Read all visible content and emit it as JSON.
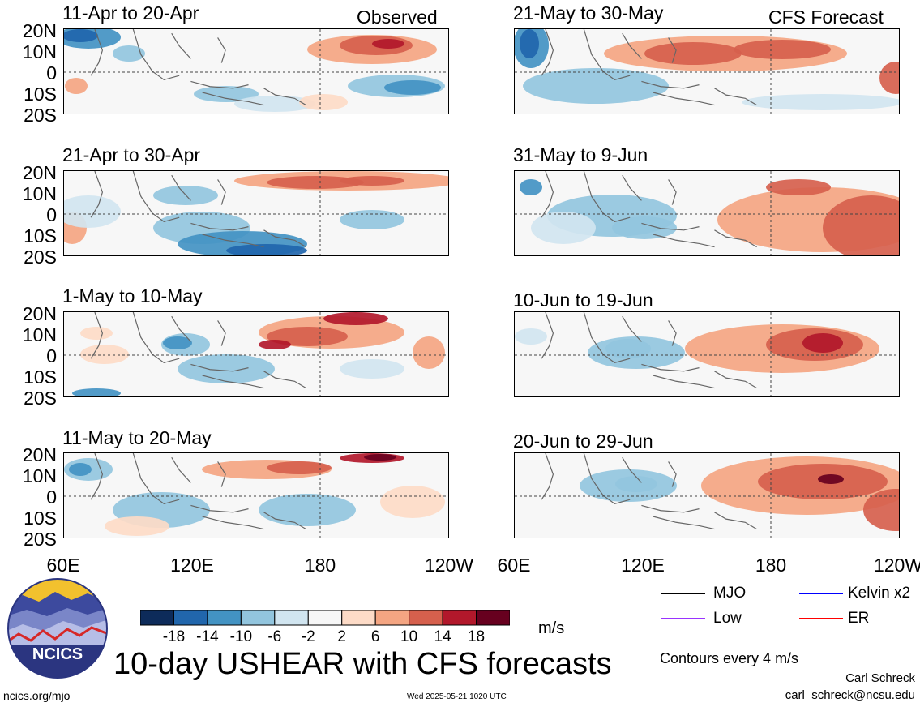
{
  "title": "10-day USHEAR with CFS forecasts",
  "panels_left_tag": "Observed",
  "panels_right_tag": "CFS Forecast",
  "lat_labels": [
    "20N",
    "10N",
    "0",
    "10S",
    "20S"
  ],
  "lon_labels": [
    "60E",
    "120E",
    "180",
    "120W"
  ],
  "colorbar": {
    "ticks": [
      "-18",
      "-14",
      "-10",
      "-6",
      "-2",
      "2",
      "6",
      "10",
      "14",
      "18"
    ],
    "colors": [
      "#0d2b5a",
      "#2166ac",
      "#4393c3",
      "#92c5de",
      "#d1e5f0",
      "#f7f7f7",
      "#fddbc7",
      "#f4a582",
      "#d6604d",
      "#b2182b",
      "#67001f"
    ],
    "units": "m/s"
  },
  "legend": {
    "items": [
      {
        "label": "MJO",
        "color": "#000000"
      },
      {
        "label": "Kelvin x2",
        "color": "#0000ff"
      },
      {
        "label": "Low",
        "color": "#9933ff"
      },
      {
        "label": "ER",
        "color": "#ff0000"
      }
    ],
    "contours_note": "Contours every 4 m/s"
  },
  "credit": {
    "author": "Carl Schreck",
    "email": "carl_schreck@ncsu.edu",
    "site": "ncics.org/mjo",
    "timestamp": "Wed 2025-05-21 1020 UTC",
    "logo_text": "NCICS"
  },
  "chart_data": [
    {
      "type": "heatmap",
      "title": "11-Apr to 20-Apr",
      "tag": "Observed",
      "period": "observed"
    },
    {
      "type": "heatmap",
      "title": "21-Apr to 30-Apr",
      "period": "observed"
    },
    {
      "type": "heatmap",
      "title": "1-May to 10-May",
      "period": "observed"
    },
    {
      "type": "heatmap",
      "title": "11-May to 20-May",
      "period": "observed"
    },
    {
      "type": "heatmap",
      "title": "21-May to 30-May",
      "tag": "CFS Forecast",
      "period": "forecast"
    },
    {
      "type": "heatmap",
      "title": "31-May to 9-Jun",
      "period": "forecast"
    },
    {
      "type": "heatmap",
      "title": "10-Jun to 19-Jun",
      "period": "forecast"
    },
    {
      "type": "heatmap",
      "title": "20-Jun to 29-Jun",
      "period": "forecast"
    }
  ]
}
